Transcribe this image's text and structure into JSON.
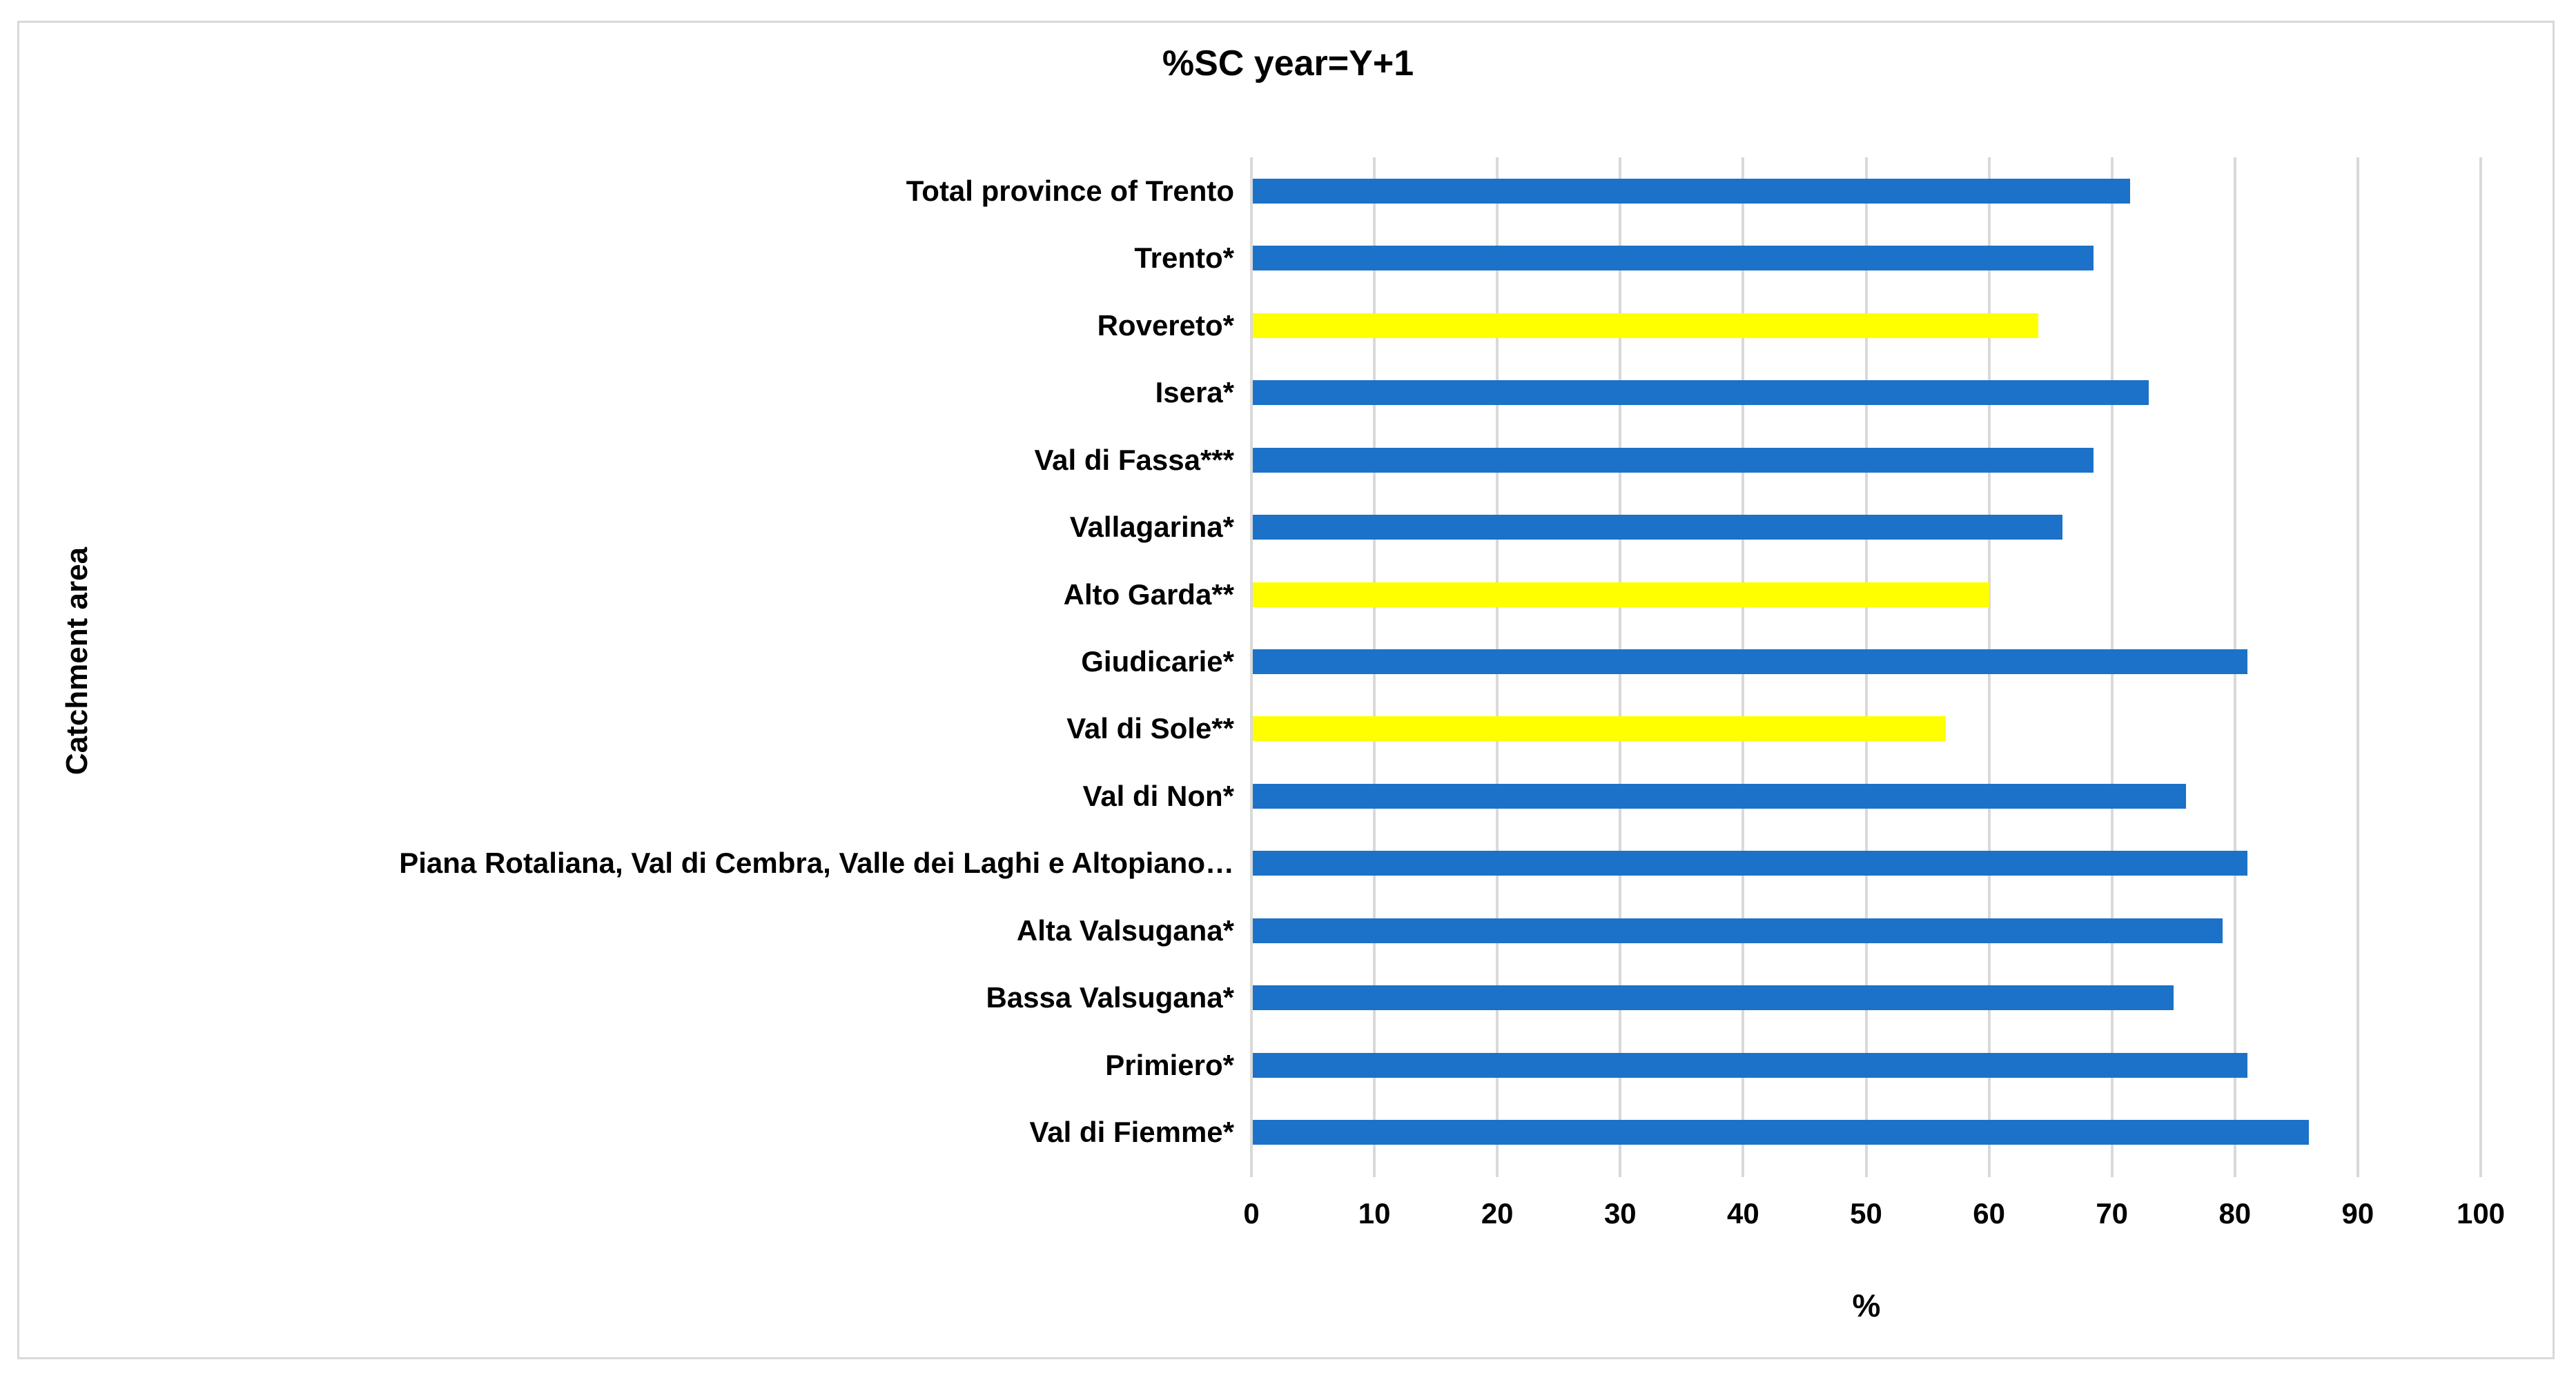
{
  "chart_data": {
    "type": "bar",
    "orientation": "horizontal",
    "title": "%SC year=Y+1",
    "xlabel": "%",
    "ylabel": "Catchment area",
    "xlim": [
      0,
      100
    ],
    "xticks": [
      0,
      10,
      20,
      30,
      40,
      50,
      60,
      70,
      80,
      90,
      100
    ],
    "grid": "vertical-light-gray",
    "legend": "none",
    "categories": [
      "Total province of Trento",
      "Trento*",
      "Rovereto*",
      "Isera*",
      "Val di Fassa***",
      "Vallagarina*",
      "Alto Garda**",
      "Giudicarie*",
      "Val di Sole**",
      "Val di Non*",
      "Piana Rotaliana, Val di Cembra, Valle dei Laghi e Altopiano…",
      "Alta Valsugana*",
      "Bassa Valsugana*",
      "Primiero*",
      "Val di Fiemme*"
    ],
    "values": [
      71.5,
      68.5,
      64,
      73,
      68.5,
      66,
      60,
      81,
      56.5,
      76,
      81,
      79,
      75,
      81,
      86
    ],
    "highlighted": [
      false,
      false,
      true,
      false,
      false,
      false,
      true,
      false,
      true,
      false,
      false,
      false,
      false,
      false,
      false
    ],
    "colors": {
      "bar": "#1b72c8",
      "highlight": "#ffff00",
      "gridline": "#d9d9d9",
      "text": "#000000",
      "background": "#ffffff"
    }
  }
}
